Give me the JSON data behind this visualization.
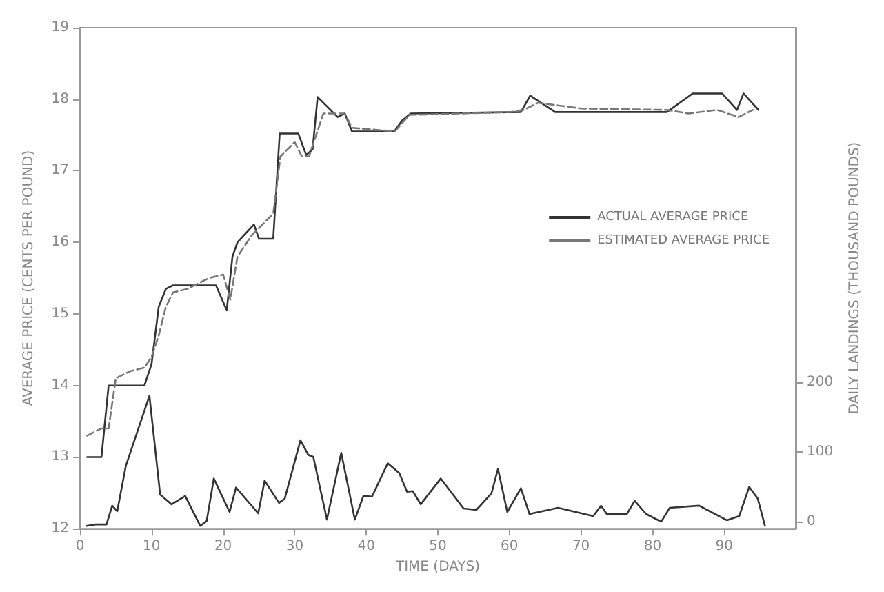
{
  "chart_data": {
    "type": "line",
    "xlabel": "TIME (DAYS)",
    "ylabel": "AVERAGE PRICE (CENTS PER POUND)",
    "y2label": "DAILY LANDINGS (THOUSAND POUNDS)",
    "xlim": [
      0,
      100
    ],
    "xticks": [
      0,
      10,
      20,
      30,
      40,
      50,
      60,
      70,
      80,
      90
    ],
    "ylim": [
      12,
      19
    ],
    "yticks": [
      12,
      13,
      14,
      15,
      16,
      17,
      18,
      19
    ],
    "y2lim": [
      -10,
      710
    ],
    "y2ticks": [
      0,
      100,
      200
    ],
    "grid": false,
    "legend": "right",
    "marker": "none",
    "series": [
      {
        "name": "ACTUAL AVERAGE PRICE",
        "color": "#333333",
        "line_style": "solid",
        "x": [
          1,
          3,
          4,
          9,
          10,
          11,
          12,
          13,
          19,
          20.5,
          21.3,
          22,
          24.3,
          25,
          27,
          27.9,
          30.5,
          31.6,
          32.5,
          33.2,
          36,
          37,
          38,
          43.9,
          45,
          46.2,
          61.6,
          62.9,
          66.4,
          82,
          85.6,
          89.7,
          91.8,
          92.7,
          94.8
        ],
        "values": [
          13.0,
          13.0,
          14.0,
          14.0,
          14.3,
          15.1,
          15.35,
          15.4,
          15.4,
          15.05,
          15.8,
          16.0,
          16.25,
          16.05,
          16.05,
          17.52,
          17.52,
          17.22,
          17.3,
          18.03,
          17.75,
          17.8,
          17.55,
          17.55,
          17.7,
          17.8,
          17.82,
          18.05,
          17.82,
          17.82,
          18.08,
          18.08,
          17.85,
          18.08,
          17.85
        ]
      },
      {
        "name": "ESTIMATED AVERAGE PRICE",
        "color": "#777777",
        "line_style": "dashed",
        "x": [
          1,
          3,
          4,
          5,
          7,
          9,
          10,
          11,
          12,
          13,
          15,
          18,
          20,
          21,
          22,
          24,
          26,
          27,
          28,
          30,
          31,
          32,
          33,
          34,
          37,
          38,
          44,
          46,
          60,
          62,
          64,
          70,
          82,
          85,
          89,
          92,
          94
        ],
        "values": [
          13.3,
          13.4,
          13.4,
          14.1,
          14.2,
          14.25,
          14.4,
          14.7,
          15.1,
          15.3,
          15.35,
          15.5,
          15.55,
          15.2,
          15.8,
          16.1,
          16.3,
          16.4,
          17.2,
          17.4,
          17.2,
          17.2,
          17.5,
          17.8,
          17.8,
          17.6,
          17.55,
          17.78,
          17.82,
          17.85,
          17.95,
          17.87,
          17.85,
          17.8,
          17.85,
          17.75,
          17.85
        ]
      },
      {
        "color": "#333333",
        "line_style": "solid",
        "axis": "y2",
        "x": [
          0.9,
          2.2,
          3.7,
          4.5,
          5.2,
          6.4,
          9.7,
          11.2,
          12.8,
          14.7,
          16.8,
          17.7,
          18.7,
          20.9,
          21.8,
          24.9,
          25.8,
          27.8,
          28.6,
          30.8,
          31.9,
          32.6,
          34.5,
          36.5,
          38.4,
          39.6,
          40.8,
          43.0,
          44.6,
          45.7,
          46.5,
          47.6,
          50.4,
          53.6,
          55.4,
          57.5,
          58.4,
          59.7,
          61.6,
          62.8,
          66.8,
          71.7,
          72.8,
          73.6,
          76.4,
          77.5,
          79.1,
          81.2,
          82.4,
          86.5,
          90.4,
          92.1,
          93.5,
          94.7,
          95.7
        ],
        "values": [
          -6,
          -4,
          -4,
          23,
          15,
          80,
          181,
          39,
          25,
          37,
          -6,
          1,
          62,
          14,
          49,
          12,
          59,
          27,
          33,
          117,
          96,
          93,
          3,
          99,
          3,
          37,
          36,
          84,
          70,
          43,
          44,
          25,
          62,
          19,
          17,
          41,
          76,
          14,
          48,
          11,
          20,
          8,
          23,
          11,
          11,
          30,
          11,
          0,
          20,
          23,
          2,
          8,
          50,
          33,
          -6
        ]
      }
    ]
  }
}
